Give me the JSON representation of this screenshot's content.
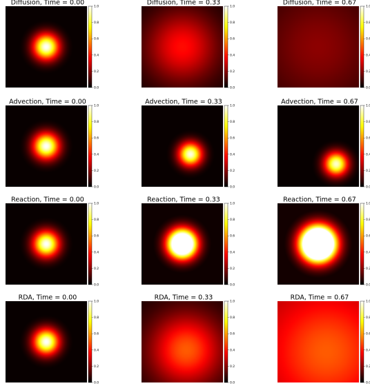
{
  "chart_data": [
    {
      "type": "heatmap",
      "title": "Diffusion, Time = 0.00",
      "center": [
        0.5,
        0.5
      ],
      "peak": 1.0,
      "width": 0.11,
      "base": 0,
      "colormap": "hot",
      "ylim": [
        0,
        1
      ],
      "yticks": [
        {
          "value": 0,
          "label": "0.0"
        },
        0.2,
        0.4,
        0.6,
        0.8,
        {
          "value": 1,
          "label": "1.0"
        }
      ]
    },
    {
      "type": "heatmap",
      "title": "Diffusion, Time = 0.33",
      "center": [
        0.5,
        0.5
      ],
      "peak": 0.38,
      "width": 0.3,
      "base": 0.03,
      "colormap": "hot",
      "ylim": [
        0,
        1
      ],
      "yticks": [
        {
          "value": 0,
          "label": "0.0"
        },
        0.2,
        0.4,
        0.6,
        0.8,
        {
          "value": 1,
          "label": "1.0"
        }
      ]
    },
    {
      "type": "heatmap",
      "title": "Diffusion, Time = 0.67",
      "center": [
        0.5,
        0.5
      ],
      "peak": 0.2,
      "width": 0.45,
      "base": 0.06,
      "colormap": "hot",
      "ylim": [
        0,
        1
      ],
      "yticks": [
        {
          "value": 0,
          "label": "0.0"
        },
        0.2,
        0.4,
        0.6,
        0.8,
        {
          "value": 1,
          "label": "1.0"
        }
      ]
    },
    {
      "type": "heatmap",
      "title": "Advection, Time = 0.00",
      "center": [
        0.5,
        0.5
      ],
      "peak": 1.0,
      "width": 0.11,
      "base": 0,
      "colormap": "hot",
      "ylim": [
        0,
        1
      ],
      "yticks": [
        {
          "value": 0,
          "label": "0.0"
        },
        0.2,
        0.4,
        0.6,
        0.8,
        {
          "value": 1,
          "label": "1.0"
        }
      ]
    },
    {
      "type": "heatmap",
      "title": "Advection, Time = 0.33",
      "center": [
        0.6,
        0.6
      ],
      "peak": 0.97,
      "width": 0.1,
      "base": 0,
      "colormap": "hot",
      "ylim": [
        0,
        1
      ],
      "yticks": [
        {
          "value": 0,
          "label": "0.0"
        },
        0.2,
        0.4,
        0.6,
        0.8,
        {
          "value": 1,
          "label": "1.0"
        }
      ]
    },
    {
      "type": "heatmap",
      "title": "Advection, Time = 0.67",
      "center": [
        0.72,
        0.72
      ],
      "peak": 0.95,
      "width": 0.1,
      "base": 0,
      "colormap": "hot",
      "ylim": [
        0,
        1
      ],
      "yticks": [
        {
          "value": 0,
          "label": "0.0"
        },
        0.2,
        0.4,
        0.6,
        0.8,
        {
          "value": 1,
          "label": "1.0"
        }
      ]
    },
    {
      "type": "heatmap",
      "title": "Reaction, Time = 0.00",
      "center": [
        0.5,
        0.5
      ],
      "peak": 1.0,
      "width": 0.11,
      "base": 0,
      "colormap": "hot",
      "ylim": [
        0,
        1
      ],
      "yticks": [
        {
          "value": 0,
          "label": "0.0"
        },
        0.2,
        0.4,
        0.6,
        0.8,
        {
          "value": 1,
          "label": "1.0"
        }
      ]
    },
    {
      "type": "heatmap",
      "title": "Reaction, Time = 0.33",
      "center": [
        0.5,
        0.5
      ],
      "peak": 1.8,
      "width": 0.12,
      "base": 0,
      "colormap": "hot",
      "ylim": [
        0,
        1
      ],
      "yticks": [
        {
          "value": 0,
          "label": "0.0"
        },
        0.2,
        0.4,
        0.6,
        0.8,
        {
          "value": 1,
          "label": "1.0"
        }
      ]
    },
    {
      "type": "heatmap",
      "title": "Reaction, Time = 0.67",
      "center": [
        0.5,
        0.5
      ],
      "peak": 2.5,
      "width": 0.14,
      "base": 0,
      "colormap": "hot",
      "ylim": [
        0,
        1
      ],
      "yticks": [
        {
          "value": 0,
          "label": "0.0"
        },
        0.2,
        0.4,
        0.6,
        0.8,
        {
          "value": 1,
          "label": "1.0"
        }
      ]
    },
    {
      "type": "heatmap",
      "title": "RDA, Time = 0.00",
      "center": [
        0.5,
        0.5
      ],
      "peak": 1.0,
      "width": 0.11,
      "base": 0,
      "colormap": "hot",
      "ylim": [
        0,
        1
      ],
      "yticks": [
        {
          "value": 0,
          "label": "0.0"
        },
        0.2,
        0.4,
        0.6,
        0.8,
        {
          "value": 1,
          "label": "1.0"
        }
      ]
    },
    {
      "type": "heatmap",
      "title": "RDA, Time = 0.33",
      "center": [
        0.55,
        0.6
      ],
      "peak": 0.5,
      "width": 0.3,
      "base": 0.04,
      "colormap": "hot",
      "ylim": [
        0,
        1
      ],
      "yticks": [
        {
          "value": 0,
          "label": "0.0"
        },
        0.2,
        0.4,
        0.6,
        0.8,
        {
          "value": 1,
          "label": "1.0"
        }
      ]
    },
    {
      "type": "heatmap",
      "title": "RDA, Time = 0.67",
      "center": [
        0.6,
        0.62
      ],
      "peak": 0.5,
      "width": 0.45,
      "base": 0.25,
      "colormap": "hot",
      "ylim": [
        0,
        1
      ],
      "yticks": [
        {
          "value": 0,
          "label": "0.0"
        },
        0.2,
        0.4,
        0.6,
        0.8,
        {
          "value": 1,
          "label": "1.0"
        }
      ]
    }
  ]
}
